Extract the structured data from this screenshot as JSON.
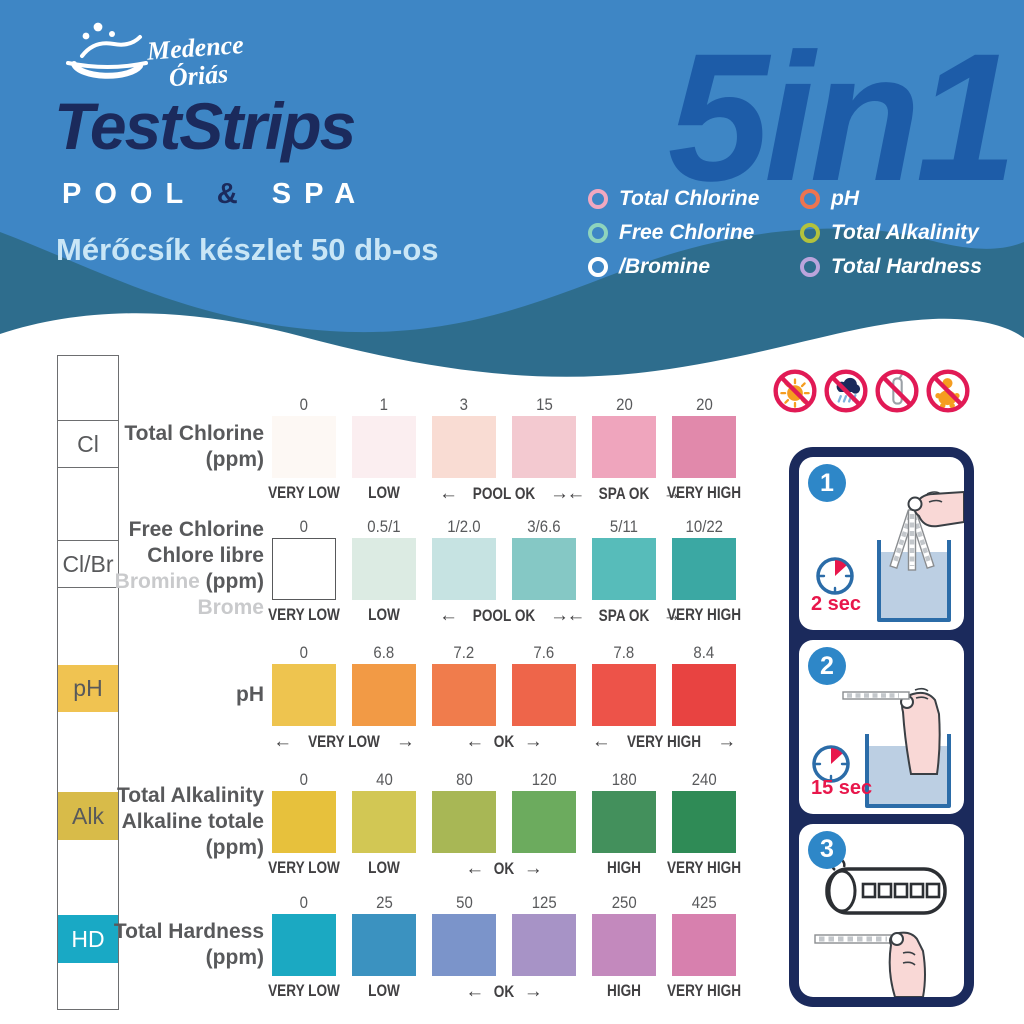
{
  "header": {
    "logo_line1": "Medence",
    "logo_line2": "Óriás",
    "title": "TestStrips",
    "subtitle": {
      "pool": "POOL",
      "amp": "&",
      "spa": "SPA"
    },
    "tagline": "Mérőcsík készlet 50 db-os",
    "badge": "5in1",
    "colors": {
      "background": "#3e86c5",
      "wave_dark": "#2e6d8d",
      "navy": "#1b2a5c",
      "badge_blue": "#1d5ca8"
    },
    "features_left": [
      {
        "label": "Total Chlorine",
        "bullet_color": "#f0a8c0"
      },
      {
        "label": "Free Chlorine",
        "bullet_color": "#8ed4bd"
      },
      {
        "label": "/Bromine",
        "bullet_color": "#ffffff"
      }
    ],
    "features_right": [
      {
        "label": "pH",
        "bullet_color": "#ec7450"
      },
      {
        "label": "Total Alkalinity",
        "bullet_color": "#b2c23d"
      },
      {
        "label": "Total Hardness",
        "bullet_color": "#bba4dc"
      }
    ]
  },
  "strip": {
    "pads": [
      {
        "label": "Cl",
        "color": "#ffffff",
        "text_color": "#58595b",
        "outlined": true
      },
      {
        "label": "Cl/Br",
        "color": "#ffffff",
        "text_color": "#58595b",
        "outlined": true
      },
      {
        "label": "pH",
        "color": "#f0c351",
        "text_color": "#58595b",
        "outlined": false
      },
      {
        "label": "Alk",
        "color": "#d8bb49",
        "text_color": "#58595b",
        "outlined": false
      },
      {
        "label": "HD",
        "color": "#19a9c5",
        "text_color": "#ffffff",
        "outlined": false
      }
    ]
  },
  "chart_rows": [
    {
      "title": [
        [
          {
            "t": "Total Chlorine",
            "m": false
          }
        ],
        [
          {
            "t": "(ppm)",
            "m": false
          }
        ]
      ],
      "values": [
        "0",
        "1",
        "3",
        "15",
        "20",
        "20"
      ],
      "colors": [
        "#fdf8f4",
        "#fbeef0",
        "#f9dcd3",
        "#f3c9d0",
        "#efa5bd",
        "#e189ab"
      ],
      "outlined_first": false,
      "labels": [
        {
          "text": "VERY LOW",
          "cols": [
            0,
            0
          ],
          "arrows": false
        },
        {
          "text": "LOW",
          "cols": [
            1,
            1
          ],
          "arrows": false
        },
        {
          "text": "POOL OK",
          "cols": [
            2,
            3
          ],
          "arrows": true
        },
        {
          "text": "SPA OK",
          "cols": [
            4,
            4
          ],
          "arrows": true
        },
        {
          "text": "VERY HIGH",
          "cols": [
            5,
            5
          ],
          "arrows": false
        }
      ]
    },
    {
      "title": [
        [
          {
            "t": "Free Chlorine",
            "m": false
          }
        ],
        [
          {
            "t": "Chlore libre",
            "m": false
          }
        ],
        [
          {
            "t": "Bromine ",
            "m": true
          },
          {
            "t": "(ppm)",
            "m": false
          }
        ],
        [
          {
            "t": "Brome",
            "m": true
          }
        ]
      ],
      "values": [
        "0",
        "0.5/1",
        "1/2.0",
        "3/6.6",
        "5/11",
        "10/22"
      ],
      "colors": [
        "#ffffff",
        "#dcebe3",
        "#c6e3e2",
        "#85c8c5",
        "#57bcba",
        "#3ba8a3"
      ],
      "outlined_first": true,
      "labels": [
        {
          "text": "VERY LOW",
          "cols": [
            0,
            0
          ],
          "arrows": false
        },
        {
          "text": "LOW",
          "cols": [
            1,
            1
          ],
          "arrows": false
        },
        {
          "text": "POOL OK",
          "cols": [
            2,
            3
          ],
          "arrows": true
        },
        {
          "text": "SPA OK",
          "cols": [
            4,
            4
          ],
          "arrows": true
        },
        {
          "text": "VERY HIGH",
          "cols": [
            5,
            5
          ],
          "arrows": false
        }
      ]
    },
    {
      "title": [
        [
          {
            "t": "pH",
            "m": false
          }
        ]
      ],
      "values": [
        "0",
        "6.8",
        "7.2",
        "7.6",
        "7.8",
        "8.4"
      ],
      "colors": [
        "#eec44f",
        "#f29a45",
        "#f07c4c",
        "#ee654a",
        "#ed5349",
        "#e84341"
      ],
      "outlined_first": false,
      "labels": [
        {
          "text": "VERY LOW",
          "cols": [
            0,
            1
          ],
          "arrows": true
        },
        {
          "text": "OK",
          "cols": [
            2,
            3
          ],
          "arrows": true
        },
        {
          "text": "VERY HIGH",
          "cols": [
            4,
            5
          ],
          "arrows": true
        }
      ]
    },
    {
      "title": [
        [
          {
            "t": "Total Alkalinity",
            "m": false
          }
        ],
        [
          {
            "t": "Alkaline totale",
            "m": false
          }
        ],
        [
          {
            "t": "(ppm)",
            "m": false
          }
        ]
      ],
      "values": [
        "0",
        "40",
        "80",
        "120",
        "180",
        "240"
      ],
      "colors": [
        "#e7c13c",
        "#d2c754",
        "#a8b755",
        "#6cab5e",
        "#43905c",
        "#2f8b56"
      ],
      "outlined_first": false,
      "labels": [
        {
          "text": "VERY LOW",
          "cols": [
            0,
            0
          ],
          "arrows": false
        },
        {
          "text": "LOW",
          "cols": [
            1,
            1
          ],
          "arrows": false
        },
        {
          "text": "OK",
          "cols": [
            2,
            3
          ],
          "arrows": true
        },
        {
          "text": "HIGH",
          "cols": [
            4,
            4
          ],
          "arrows": false
        },
        {
          "text": "VERY HIGH",
          "cols": [
            5,
            5
          ],
          "arrows": false
        }
      ]
    },
    {
      "title": [
        [
          {
            "t": "Total Hardness",
            "m": false
          }
        ],
        [
          {
            "t": "(ppm)",
            "m": false
          }
        ]
      ],
      "values": [
        "0",
        "25",
        "50",
        "125",
        "250",
        "425"
      ],
      "colors": [
        "#1ba9c2",
        "#3b92c0",
        "#7b94ca",
        "#a793c6",
        "#c389bd",
        "#d780ae"
      ],
      "outlined_first": false,
      "labels": [
        {
          "text": "VERY LOW",
          "cols": [
            0,
            0
          ],
          "arrows": false
        },
        {
          "text": "LOW",
          "cols": [
            1,
            1
          ],
          "arrows": false
        },
        {
          "text": "OK",
          "cols": [
            2,
            3
          ],
          "arrows": true
        },
        {
          "text": "HIGH",
          "cols": [
            4,
            4
          ],
          "arrows": false
        },
        {
          "text": "VERY HIGH",
          "cols": [
            5,
            5
          ],
          "arrows": false
        }
      ]
    }
  ],
  "warnings": [
    "no-direct-sunlight-icon",
    "no-rain-moisture-icon",
    "no-open-tube-icon",
    "keep-away-children-icon"
  ],
  "steps": [
    {
      "number": "1",
      "time": "2 sec"
    },
    {
      "number": "2",
      "time": "15 sec"
    },
    {
      "number": "3",
      "time": ""
    }
  ]
}
